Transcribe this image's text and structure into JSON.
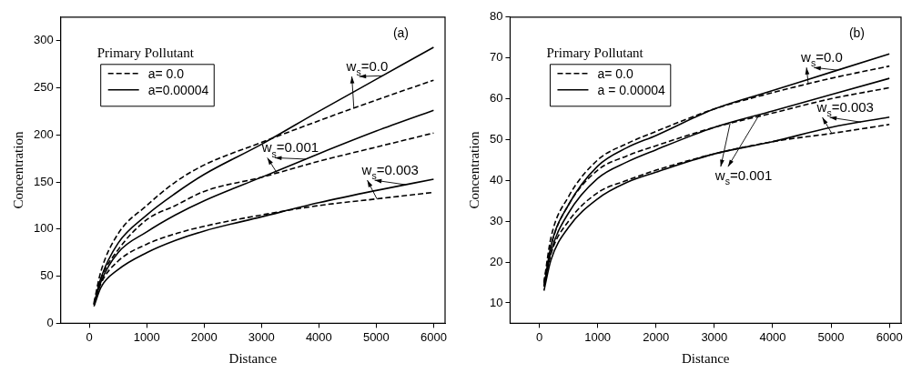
{
  "chart_data": [
    {
      "type": "line",
      "title": "(a)",
      "subtitle": "Primary Pollutant",
      "xlabel": "Distance",
      "ylabel": "Concentration",
      "xlim": [
        -500,
        6200
      ],
      "xticks": [
        0,
        1000,
        2000,
        3000,
        4000,
        5000,
        6000
      ],
      "ylim": [
        0,
        325
      ],
      "yticks": [
        0,
        50,
        100,
        150,
        200,
        250,
        300
      ],
      "legend": "top left",
      "grid": false,
      "marker": "none",
      "x": [
        80,
        200,
        500,
        1000,
        1500,
        2000,
        3000,
        4000,
        5000,
        6000
      ],
      "series": [
        {
          "name": "a= 0.0",
          "color": "#000000",
          "line_style": "dashed",
          "values": [
            22,
            55,
            95,
            125,
            150,
            168,
            192,
            215,
            237,
            258
          ]
        },
        {
          "name": "a=0.00004",
          "color": "#000000",
          "line_style": "solid",
          "values": [
            20,
            48,
            85,
            115,
            138,
            158,
            190,
            225,
            259,
            293
          ]
        },
        {
          "color": "#000000",
          "line_style": "dashed",
          "values": [
            21,
            47,
            78,
            110,
            125,
            140,
            155,
            172,
            187,
            202
          ]
        },
        {
          "color": "#000000",
          "line_style": "solid",
          "values": [
            20,
            44,
            75,
            97,
            115,
            130,
            155,
            180,
            204,
            226
          ]
        },
        {
          "color": "#000000",
          "line_style": "dashed",
          "values": [
            20,
            42,
            66,
            84,
            95,
            103,
            115,
            125,
            132,
            139
          ]
        },
        {
          "color": "#000000",
          "line_style": "solid",
          "values": [
            18,
            38,
            57,
            75,
            88,
            98,
            113,
            128,
            141,
            153
          ]
        }
      ],
      "annotations": [
        "w$_{s}$=0.0",
        "w$_{s}$=0.001",
        "w$_{s}$=0.003"
      ]
    },
    {
      "type": "line",
      "title": "(b)",
      "subtitle": "Primary Pollutant",
      "xlabel": "Distance",
      "ylabel": "Concentration",
      "xlim": [
        -500,
        6200
      ],
      "xticks": [
        0,
        1000,
        2000,
        3000,
        4000,
        5000,
        6000
      ],
      "ylim": [
        5,
        80
      ],
      "yticks": [
        10,
        20,
        30,
        40,
        50,
        60,
        70,
        80
      ],
      "legend": "top left",
      "grid": false,
      "marker": "none",
      "x": [
        80,
        200,
        500,
        1000,
        1500,
        2000,
        3000,
        4000,
        5000,
        6000
      ],
      "series": [
        {
          "name": "a= 0.0",
          "color": "#000000",
          "line_style": "dashed",
          "values": [
            15,
            26,
            36,
            45,
            49,
            52,
            57.5,
            61.5,
            65,
            68
          ]
        },
        {
          "name": "a = 0.00004",
          "color": "#000000",
          "line_style": "solid",
          "values": [
            14,
            24,
            34,
            43.5,
            48,
            51,
            57.5,
            62,
            66.5,
            71
          ]
        },
        {
          "color": "#000000",
          "line_style": "dashed",
          "values": [
            15,
            24,
            34,
            42.5,
            46,
            48.5,
            53,
            56.5,
            60,
            62.7
          ]
        },
        {
          "color": "#000000",
          "line_style": "solid",
          "values": [
            14,
            22.5,
            32,
            40.5,
            44.5,
            47.5,
            53,
            57,
            61,
            65
          ]
        },
        {
          "color": "#000000",
          "line_style": "dashed",
          "values": [
            14,
            22,
            30,
            37,
            40,
            42.5,
            46.5,
            49.5,
            51.5,
            53.7
          ]
        },
        {
          "color": "#000000",
          "line_style": "solid",
          "values": [
            13,
            20.5,
            28.5,
            35.5,
            39.5,
            42,
            46.5,
            49.5,
            53,
            55.5
          ]
        }
      ],
      "annotations": [
        "w$_{s}$=0.0",
        "w$_{s}$=0.001",
        "w$_{s}$=0.003"
      ]
    }
  ]
}
